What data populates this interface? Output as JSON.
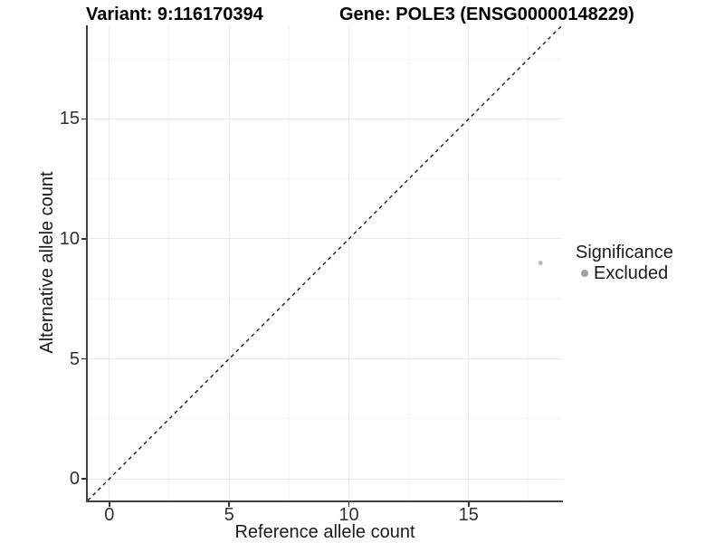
{
  "chart_data": {
    "type": "scatter",
    "title_left": "Variant: 9:116170394",
    "title_right": "Gene: POLE3 (ENSG00000148229)",
    "xlabel": "Reference allele count",
    "ylabel": "Alternative allele count",
    "xlim": [
      -0.9,
      18.9
    ],
    "ylim": [
      -0.9,
      18.9
    ],
    "x_ticks": [
      0,
      5,
      10,
      15
    ],
    "y_ticks": [
      0,
      5,
      10,
      15
    ],
    "x_minor_ticks": [
      2.5,
      7.5,
      12.5,
      17.5
    ],
    "y_minor_ticks": [
      2.5,
      7.5,
      12.5,
      17.5
    ],
    "grid": "major-and-minor",
    "reference_line": {
      "type": "identity-diagonal",
      "slope": 1,
      "intercept": 0,
      "style": "dashed",
      "color": "#1a1a1a",
      "width": 1.4,
      "dash": "4 4"
    },
    "series": [
      {
        "name": "Excluded",
        "color": "#bcbcbc",
        "marker_radius": 2.5,
        "points": [
          {
            "x": 18,
            "y": 9
          }
        ]
      }
    ],
    "legend": {
      "title": "Significance",
      "position": "right",
      "entries": [
        {
          "label": "Excluded",
          "color": "#a0a0a0"
        }
      ]
    }
  },
  "styles": {
    "background": "#ffffff",
    "axis_line_color": "#404040",
    "tick_color": "#333333",
    "tick_label_color": "#303030",
    "title_color": "#000000",
    "grid_major_color": "#e9e9e9",
    "grid_minor_color": "#f4f4f4"
  }
}
